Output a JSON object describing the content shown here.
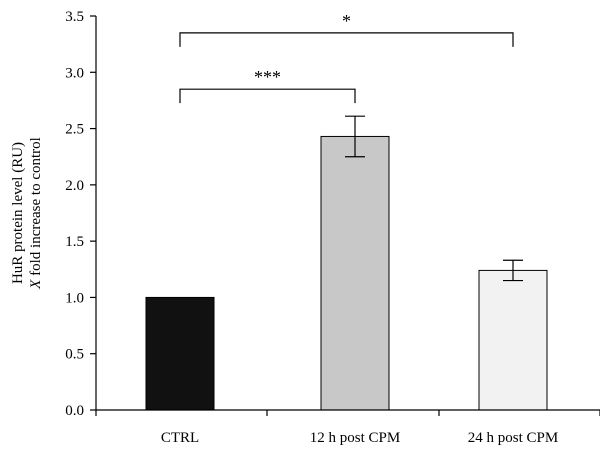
{
  "chart_data": {
    "type": "bar",
    "title": "",
    "xlabel": "",
    "ylabel_lines": [
      "HuR protein level (RU)",
      "X fold increase to control"
    ],
    "ylabel_italic_prefix": "X",
    "ylim": [
      0,
      3.5
    ],
    "ytick_values": [
      0,
      0.5,
      1,
      1.5,
      2,
      2.5,
      3,
      3.5
    ],
    "ytick_labels": [
      "0.0",
      "0.5",
      "1.0",
      "1.5",
      "2.0",
      "2.5",
      "3.0",
      "3.5"
    ],
    "grid": false,
    "legend": "none",
    "categories": [
      "CTRL",
      "12 h post CPM",
      "24 h post CPM"
    ],
    "values": [
      1.0,
      2.43,
      1.24
    ],
    "errors": [
      0.0,
      0.18,
      0.09
    ],
    "bar_colors": [
      "#111111",
      "#c8c8c8",
      "#f2f2f2"
    ],
    "significance": [
      {
        "from": 0,
        "to": 1,
        "label": "***",
        "level": 2.85
      },
      {
        "from": 0,
        "to": 2,
        "label": "*",
        "level": 3.35
      }
    ]
  }
}
